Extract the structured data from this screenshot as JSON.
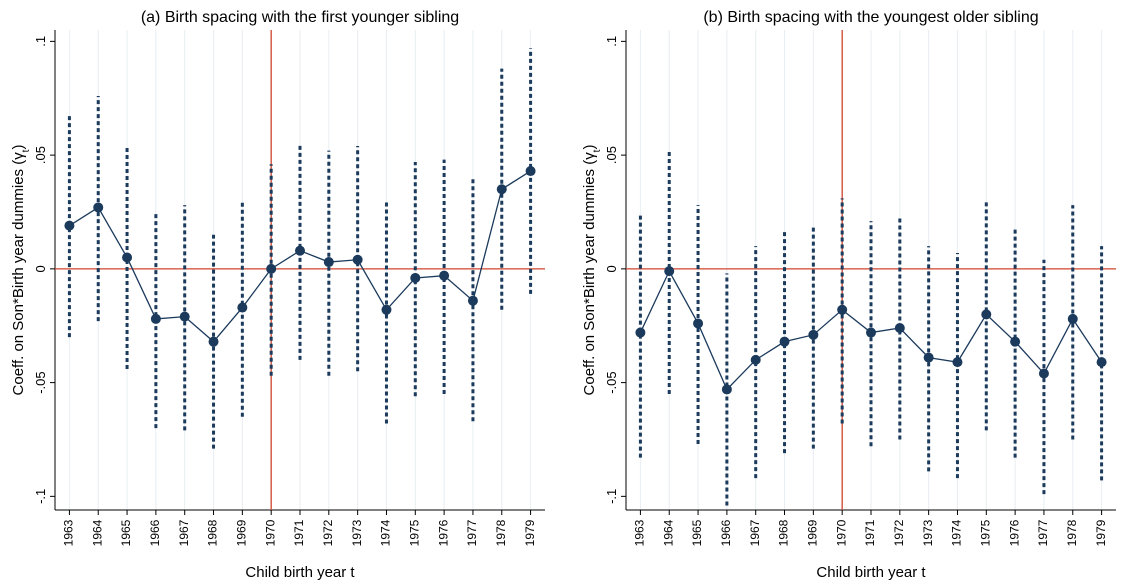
{
  "chart_data": [
    {
      "type": "errorbar-line",
      "title": "(a) Birth spacing with the first younger sibling",
      "x_label": "Child birth year t",
      "y_label": "Coeff. on Son*Birth year dummies (γ",
      "y_label_sub": "t",
      "y_label_end": ")",
      "categories": [
        "1963",
        "1964",
        "1965",
        "1966",
        "1967",
        "1968",
        "1969",
        "1970",
        "1971",
        "1972",
        "1973",
        "1974",
        "1975",
        "1976",
        "1977",
        "1978",
        "1979"
      ],
      "series": [
        {
          "color": "#1b3a5c",
          "values": [
            0.019,
            0.027,
            0.005,
            -0.022,
            -0.021,
            -0.032,
            -0.017,
            0,
            0.008,
            0.003,
            0.004,
            -0.018,
            -0.004,
            -0.003,
            -0.014,
            0.035,
            0.043
          ],
          "ci_high": [
            0.068,
            0.076,
            0.054,
            0.025,
            0.028,
            0.015,
            0.03,
            0.046,
            0.055,
            0.052,
            0.054,
            0.03,
            0.047,
            0.048,
            0.04,
            0.088,
            0.097
          ],
          "ci_low": [
            -0.03,
            -0.023,
            -0.044,
            -0.07,
            -0.071,
            -0.079,
            -0.065,
            -0.047,
            -0.04,
            -0.047,
            -0.045,
            -0.068,
            -0.056,
            -0.055,
            -0.067,
            -0.018,
            -0.011
          ]
        }
      ],
      "ylim": [
        -0.106,
        0.105
      ],
      "yticks": [
        {
          "value": 0.1,
          "label": ".1"
        },
        {
          "value": 0.05,
          "label": ".05"
        },
        0,
        {
          "value": -0.05,
          "label": "-.05"
        },
        {
          "value": -0.1,
          "label": "-.1"
        }
      ],
      "reference_y": 0,
      "reference_x": "1970",
      "reference_color": "#d0442c"
    },
    {
      "type": "errorbar-line",
      "title": "(b) Birth spacing with the youngest older sibling",
      "x_label": "Child birth year t",
      "y_label": "Coeff. on Son*Birth year dummies (γ",
      "y_label_sub": "t",
      "y_label_end": ")",
      "categories": [
        "1963",
        "1964",
        "1965",
        "1966",
        "1967",
        "1968",
        "1969",
        "1970",
        "1971",
        "1972",
        "1973",
        "1974",
        "1975",
        "1976",
        "1977",
        "1978",
        "1979"
      ],
      "series": [
        {
          "color": "#1b3a5c",
          "values": [
            -0.028,
            -0.001,
            -0.024,
            -0.053,
            -0.04,
            -0.032,
            -0.029,
            -0.018,
            -0.028,
            -0.026,
            -0.039,
            -0.041,
            -0.02,
            -0.032,
            -0.046,
            -0.022,
            -0.041
          ],
          "ci_high": [
            0.024,
            0.052,
            0.028,
            -0.002,
            0.01,
            0.017,
            0.019,
            0.031,
            0.021,
            0.023,
            0.01,
            0.007,
            0.03,
            0.018,
            0.004,
            0.028,
            0.01
          ],
          "ci_low": [
            -0.083,
            -0.055,
            -0.077,
            -0.104,
            -0.092,
            -0.081,
            -0.079,
            -0.068,
            -0.078,
            -0.075,
            -0.089,
            -0.092,
            -0.071,
            -0.083,
            -0.099,
            -0.075,
            -0.093
          ]
        }
      ],
      "ylim": [
        -0.106,
        0.105
      ],
      "yticks": [
        {
          "value": 0.1,
          "label": ".1"
        },
        {
          "value": 0.05,
          "label": ".05"
        },
        0,
        {
          "value": -0.05,
          "label": "-.05"
        },
        {
          "value": -0.1,
          "label": "-.1"
        }
      ],
      "reference_y": 0,
      "reference_x": "1970",
      "reference_color": "#d0442c"
    }
  ]
}
